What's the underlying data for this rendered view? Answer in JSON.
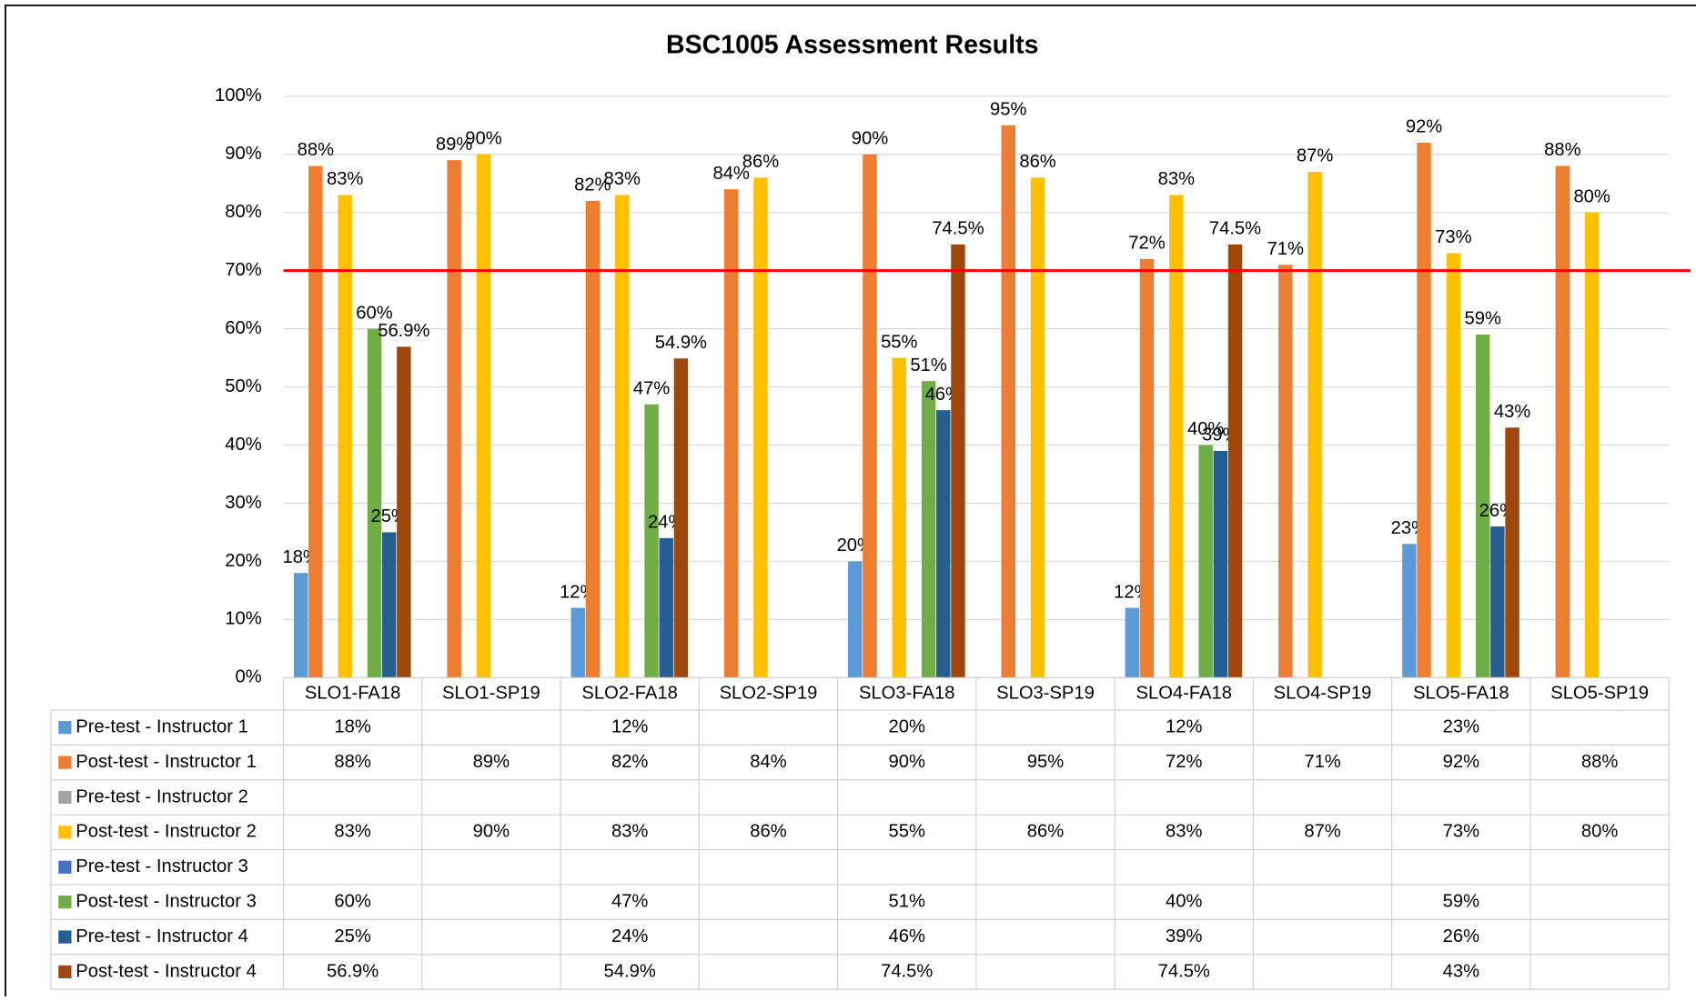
{
  "chart_data": {
    "type": "bar",
    "title": "BSC1005 Assessment Results",
    "categories": [
      "SLO1-FA18",
      "SLO1-SP19",
      "SLO2-FA18",
      "SLO2-SP19",
      "SLO3-FA18",
      "SLO3-SP19",
      "SLO4-FA18",
      "SLO4-SP19",
      "SLO5-FA18",
      "SLO5-SP19"
    ],
    "series": [
      {
        "name": "Pre-test - Instructor 1",
        "color": "#5b9bd5",
        "values": [
          18,
          null,
          12,
          null,
          20,
          null,
          12,
          null,
          23,
          null
        ],
        "value_labels": [
          "18%",
          null,
          "12%",
          null,
          "20%",
          null,
          "12%",
          null,
          "23%",
          null
        ]
      },
      {
        "name": "Post-test - Instructor 1",
        "color": "#ed7d31",
        "values": [
          88,
          89,
          82,
          84,
          90,
          95,
          72,
          71,
          92,
          88
        ],
        "value_labels": [
          "88%",
          "89%",
          "82%",
          "84%",
          "90%",
          "95%",
          "72%",
          "71%",
          "92%",
          "88%"
        ]
      },
      {
        "name": "Pre-test - Instructor 2",
        "color": "#a5a5a5",
        "values": [
          null,
          null,
          null,
          null,
          null,
          null,
          null,
          null,
          null,
          null
        ],
        "value_labels": [
          null,
          null,
          null,
          null,
          null,
          null,
          null,
          null,
          null,
          null
        ]
      },
      {
        "name": "Post-test - Instructor 2",
        "color": "#ffc000",
        "values": [
          83,
          90,
          83,
          86,
          55,
          86,
          83,
          87,
          73,
          80
        ],
        "value_labels": [
          "83%",
          "90%",
          "83%",
          "86%",
          "55%",
          "86%",
          "83%",
          "87%",
          "73%",
          "80%"
        ]
      },
      {
        "name": "Pre-test - Instructor 3",
        "color": "#4472c4",
        "values": [
          null,
          null,
          null,
          null,
          null,
          null,
          null,
          null,
          null,
          null
        ],
        "value_labels": [
          null,
          null,
          null,
          null,
          null,
          null,
          null,
          null,
          null,
          null
        ]
      },
      {
        "name": "Post-test - Instructor 3",
        "color": "#70ad47",
        "values": [
          60,
          null,
          47,
          null,
          51,
          null,
          40,
          null,
          59,
          null
        ],
        "value_labels": [
          "60%",
          null,
          "47%",
          null,
          "51%",
          null,
          "40%",
          null,
          "59%",
          null
        ]
      },
      {
        "name": "Pre-test - Instructor 4",
        "color": "#255e91",
        "values": [
          25,
          null,
          24,
          null,
          46,
          null,
          39,
          null,
          26,
          null
        ],
        "value_labels": [
          "25%",
          null,
          "24%",
          null,
          "46%",
          null,
          "39%",
          null,
          "26%",
          null
        ]
      },
      {
        "name": "Post-test - Instructor 4",
        "color": "#9e480e",
        "values": [
          56.9,
          null,
          54.9,
          null,
          74.5,
          null,
          74.5,
          null,
          43,
          null
        ],
        "value_labels": [
          "56.9%",
          null,
          "54.9%",
          null,
          "74.5%",
          null,
          "74.5%",
          null,
          "43%",
          null
        ]
      }
    ],
    "ylim": [
      0,
      100
    ],
    "yticks": [
      {
        "value": 0,
        "label": "0%"
      },
      {
        "value": 10,
        "label": "10%"
      },
      {
        "value": 20,
        "label": "20%"
      },
      {
        "value": 30,
        "label": "30%"
      },
      {
        "value": 40,
        "label": "40%"
      },
      {
        "value": 50,
        "label": "50%"
      },
      {
        "value": 60,
        "label": "60%"
      },
      {
        "value": 70,
        "label": "70%"
      },
      {
        "value": 80,
        "label": "80%"
      },
      {
        "value": 90,
        "label": "90%"
      },
      {
        "value": 100,
        "label": "100%"
      }
    ],
    "grid": true,
    "reference_line": {
      "value": 70,
      "color": "#ff0000"
    },
    "data_table": true
  }
}
